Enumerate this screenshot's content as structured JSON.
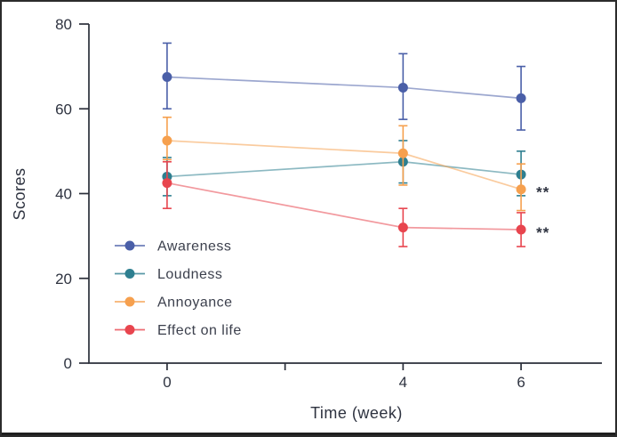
{
  "frame": {
    "background": "#ffffff",
    "border_color": "#2b2b2b"
  },
  "chart_data": {
    "type": "line",
    "xlabel": "Time (week)",
    "ylabel": "Scores",
    "x": [
      0,
      4,
      6
    ],
    "xlim": [
      -1.325,
      7.37
    ],
    "ylim": [
      0,
      80
    ],
    "grid": false,
    "error_bars": true,
    "legend_position": "inside-lower-left",
    "x_ticks": [
      {
        "value": 0,
        "label": "0"
      },
      {
        "value": 2,
        "label": ""
      },
      {
        "value": 4,
        "label": "4"
      },
      {
        "value": 6,
        "label": "6"
      }
    ],
    "y_ticks": [
      {
        "value": 0,
        "label": "0"
      },
      {
        "value": 20,
        "label": "20"
      },
      {
        "value": 40,
        "label": "40"
      },
      {
        "value": 60,
        "label": "60"
      },
      {
        "value": 80,
        "label": "80"
      }
    ],
    "series": [
      {
        "name": "Awareness",
        "color": "#4a5fa8",
        "values": [
          67.5,
          65,
          62.5
        ],
        "err_low": [
          60,
          57.5,
          55
        ],
        "err_high": [
          75.5,
          73,
          70
        ]
      },
      {
        "name": "Loudness",
        "color": "#2e7f90",
        "values": [
          44,
          47.5,
          44.5
        ],
        "err_low": [
          39.5,
          42.5,
          39.5
        ],
        "err_high": [
          48.5,
          52.5,
          50
        ]
      },
      {
        "name": "Annoyance",
        "color": "#f6a04e",
        "values": [
          52.5,
          49.5,
          41
        ],
        "err_low": [
          48,
          42,
          36
        ],
        "err_high": [
          58,
          56,
          47
        ]
      },
      {
        "name": "Effect on life",
        "color": "#e8454e",
        "values": [
          42.5,
          32,
          31.5
        ],
        "err_low": [
          36.5,
          27.5,
          27.5
        ],
        "err_high": [
          47.5,
          36.5,
          35.5
        ]
      }
    ],
    "annotations": [
      {
        "text": "**",
        "series": "Annoyance",
        "x": 6
      },
      {
        "text": "**",
        "series": "Effect on life",
        "x": 6
      }
    ],
    "annotation_color": "#2f3340",
    "axis_color": "#2b2f3a"
  }
}
